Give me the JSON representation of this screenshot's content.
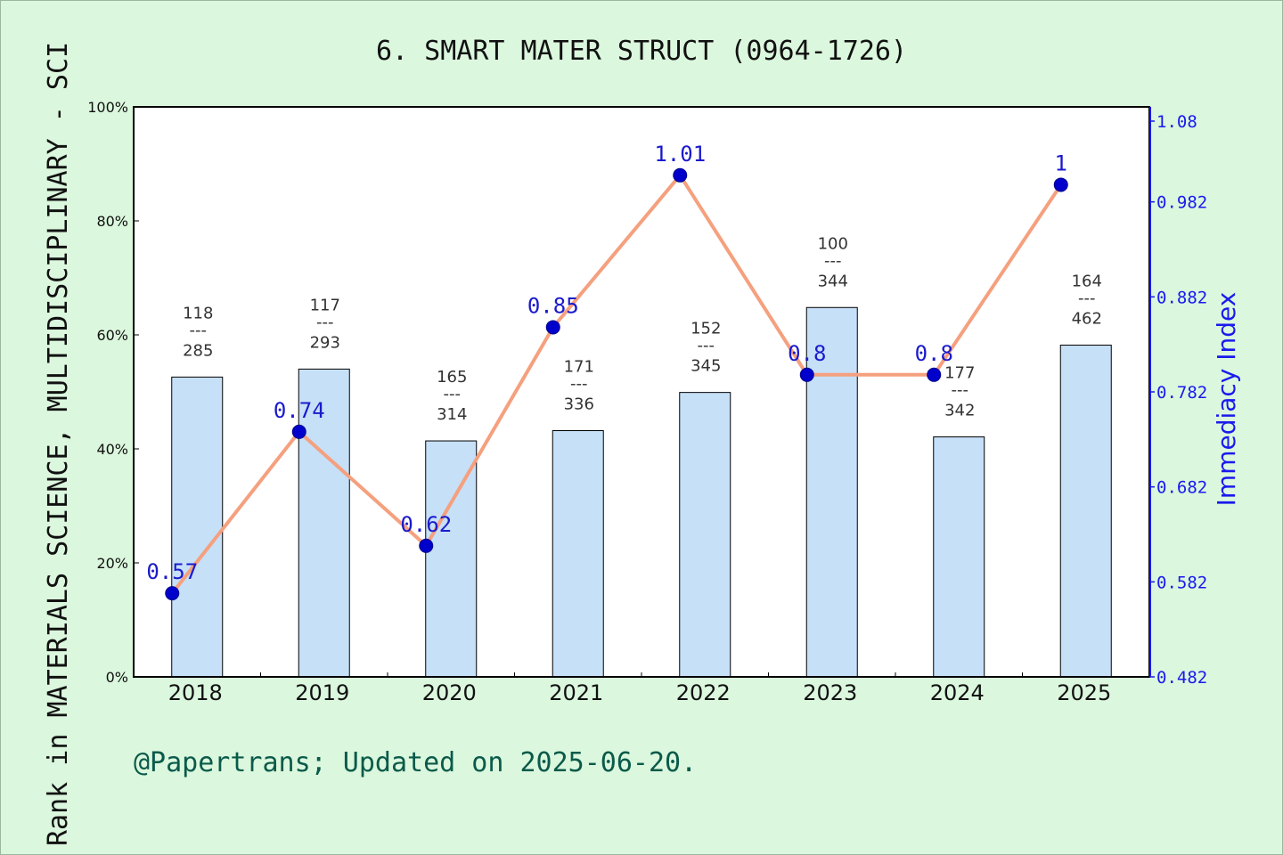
{
  "title": "6. SMART MATER STRUCT (0964-1726)",
  "footer": "@Papertrans; Updated on 2025-06-20.",
  "colors": {
    "background": "#dbf7dd",
    "bar_fill": "#c6e0f8",
    "line": "#f5a07e",
    "marker": "#0000cc",
    "right_axis": "#1a1aee"
  },
  "chart_data": {
    "type": "bar+line",
    "categories": [
      "2018",
      "2019",
      "2020",
      "2021",
      "2022",
      "2023",
      "2024",
      "2025"
    ],
    "ylabel_left": "Rank in MATERIALS SCIENCE, MULTIDISCIPLINARY - SCI",
    "ylabel_right": "Immediacy Index",
    "left_axis": {
      "ylim": [
        0,
        100
      ],
      "ticks": [
        "0%",
        "20%",
        "40%",
        "60%",
        "80%",
        "100%"
      ]
    },
    "right_axis": {
      "ylim": [
        0.482,
        1.082
      ],
      "ticks": [
        "0.482",
        "0.582",
        "0.682",
        "0.782",
        "0.882",
        "0.982",
        "1.08"
      ]
    },
    "bars": [
      {
        "rank": 118,
        "total": 285,
        "percent": 52.6
      },
      {
        "rank": 117,
        "total": 293,
        "percent": 54.0
      },
      {
        "rank": 165,
        "total": 314,
        "percent": 41.4
      },
      {
        "rank": 171,
        "total": 336,
        "percent": 43.2
      },
      {
        "rank": 152,
        "total": 345,
        "percent": 49.9
      },
      {
        "rank": 100,
        "total": 344,
        "percent": 64.8
      },
      {
        "rank": 177,
        "total": 342,
        "percent": 42.1
      },
      {
        "rank": 164,
        "total": 462,
        "percent": 58.2
      }
    ],
    "fraction_separator": "---",
    "line": {
      "values": [
        0.57,
        0.74,
        0.62,
        0.85,
        1.01,
        0.8,
        0.8,
        1
      ],
      "labels": [
        "0.57",
        "0.74",
        "0.62",
        "0.85",
        "1.01",
        "0.8",
        "0.8",
        "1"
      ]
    },
    "grid": false
  }
}
